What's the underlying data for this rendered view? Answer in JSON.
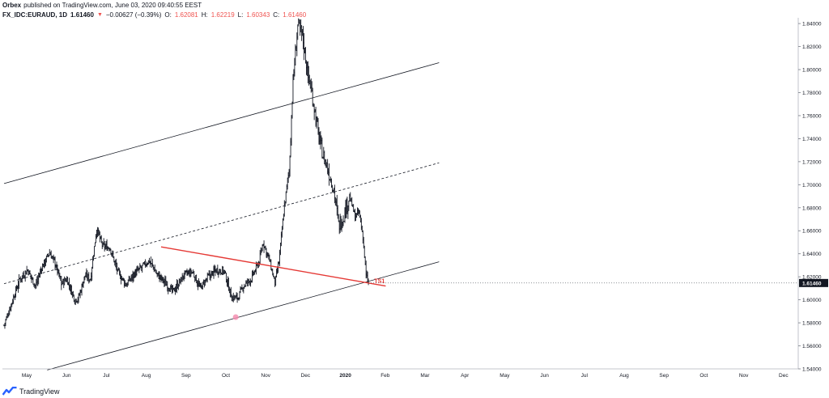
{
  "header": {
    "publisher": "Orbex",
    "published_text": "published on TradingView.com, June 03, 2020 09:40:55 EEST",
    "symbol": "FX_IDC:EURAUD, 1D",
    "last": "1.61460",
    "change_arrow": "▼",
    "change": "−0.00627 (−0.39%)",
    "open_label": "O:",
    "open": "1.62081",
    "high_label": "H:",
    "high": "1.62219",
    "low_label": "L:",
    "low": "1.60343",
    "close_label": "C:",
    "close": "1.61460"
  },
  "footer": {
    "brand": "TradingView"
  },
  "colors": {
    "trendline": "#e53935",
    "bars": "#131722",
    "channel": "#131722",
    "marker": "#f48fb1",
    "price_badge": "#131722"
  },
  "chart_data": {
    "type": "ohlc",
    "symbol": "FX_IDC:EURAUD",
    "timeframe": "1D",
    "y_ticks": [
      "1.84000",
      "1.82000",
      "1.80000",
      "1.78000",
      "1.76000",
      "1.74000",
      "1.72000",
      "1.70000",
      "1.68000",
      "1.66000",
      "1.64000",
      "1.62000",
      "1.60000",
      "1.58000",
      "1.56000",
      "1.54000"
    ],
    "ylim": [
      1.54,
      1.845
    ],
    "x_ticks": [
      "May",
      "Jun",
      "Jul",
      "Aug",
      "Sep",
      "Oct",
      "Nov",
      "Dec",
      "2020",
      "Feb",
      "Mar",
      "Apr",
      "May",
      "Jun",
      "Jul",
      "Aug",
      "Sep",
      "Oct",
      "Nov",
      "Dec"
    ],
    "x_ticks_bold": [
      "2020"
    ],
    "last_price_label": "1.61460",
    "close_path": [
      {
        "i": 0,
        "c": 1.578
      },
      {
        "i": 10,
        "c": 1.598
      },
      {
        "i": 20,
        "c": 1.618
      },
      {
        "i": 30,
        "c": 1.626
      },
      {
        "i": 40,
        "c": 1.612
      },
      {
        "i": 48,
        "c": 1.628
      },
      {
        "i": 58,
        "c": 1.641
      },
      {
        "i": 65,
        "c": 1.632
      },
      {
        "i": 73,
        "c": 1.614
      },
      {
        "i": 80,
        "c": 1.618
      },
      {
        "i": 90,
        "c": 1.6
      },
      {
        "i": 95,
        "c": 1.602
      },
      {
        "i": 103,
        "c": 1.621
      },
      {
        "i": 110,
        "c": 1.618
      },
      {
        "i": 118,
        "c": 1.662
      },
      {
        "i": 125,
        "c": 1.647
      },
      {
        "i": 135,
        "c": 1.645
      },
      {
        "i": 145,
        "c": 1.624
      },
      {
        "i": 155,
        "c": 1.613
      },
      {
        "i": 165,
        "c": 1.622
      },
      {
        "i": 175,
        "c": 1.628
      },
      {
        "i": 185,
        "c": 1.634
      },
      {
        "i": 195,
        "c": 1.622
      },
      {
        "i": 205,
        "c": 1.615
      },
      {
        "i": 215,
        "c": 1.607
      },
      {
        "i": 225,
        "c": 1.617
      },
      {
        "i": 230,
        "c": 1.622
      },
      {
        "i": 240,
        "c": 1.624
      },
      {
        "i": 250,
        "c": 1.61
      },
      {
        "i": 260,
        "c": 1.62
      },
      {
        "i": 270,
        "c": 1.626
      },
      {
        "i": 280,
        "c": 1.625
      },
      {
        "i": 290,
        "c": 1.602
      },
      {
        "i": 298,
        "c": 1.602
      },
      {
        "i": 305,
        "c": 1.612
      },
      {
        "i": 315,
        "c": 1.618
      },
      {
        "i": 325,
        "c": 1.634
      },
      {
        "i": 330,
        "c": 1.65
      },
      {
        "i": 338,
        "c": 1.634
      },
      {
        "i": 345,
        "c": 1.614
      },
      {
        "i": 350,
        "c": 1.633
      },
      {
        "i": 357,
        "c": 1.682
      },
      {
        "i": 363,
        "c": 1.712
      },
      {
        "i": 368,
        "c": 1.79
      },
      {
        "i": 374,
        "c": 1.838
      },
      {
        "i": 380,
        "c": 1.83
      },
      {
        "i": 386,
        "c": 1.8
      },
      {
        "i": 393,
        "c": 1.776
      },
      {
        "i": 400,
        "c": 1.745
      },
      {
        "i": 406,
        "c": 1.726
      },
      {
        "i": 413,
        "c": 1.712
      },
      {
        "i": 420,
        "c": 1.696
      },
      {
        "i": 426,
        "c": 1.665
      },
      {
        "i": 432,
        "c": 1.672
      },
      {
        "i": 440,
        "c": 1.69
      },
      {
        "i": 447,
        "c": 1.672
      },
      {
        "i": 452,
        "c": 1.676
      },
      {
        "i": 457,
        "c": 1.655
      },
      {
        "i": 461,
        "c": 1.621
      },
      {
        "i": 464,
        "c": 1.6146
      }
    ],
    "drawings": {
      "channel_upper": [
        [
          0,
          1.701
        ],
        [
          554,
          1.806
        ]
      ],
      "channel_mid_dashed": [
        [
          0,
          1.614
        ],
        [
          554,
          1.719
        ]
      ],
      "channel_lower": [
        [
          55,
          1.539
        ],
        [
          554,
          1.633
        ]
      ],
      "red_trendline": [
        [
          200,
          1.646
        ],
        [
          486,
          1.612
        ]
      ],
      "red_trendline_label": "TS1",
      "low_marker": [
        [
          295,
          1.585
        ]
      ]
    }
  }
}
